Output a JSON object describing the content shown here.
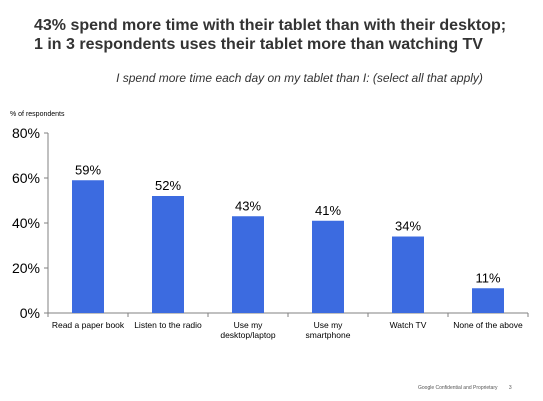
{
  "title_lines": [
    "43% spend more time with their tablet than with their desktop;",
    "1 in 3 respondents uses their tablet more than watching TV"
  ],
  "footer": {
    "text": "Google Confidential and Proprietary",
    "page": "3"
  },
  "chart_data": {
    "type": "bar",
    "title": "I spend more time each day on my tablet than I: (select all that apply)",
    "ylabel": "% of respondents",
    "xlabel": "",
    "ylim": [
      0,
      80
    ],
    "yticks": [
      0,
      20,
      40,
      60,
      80
    ],
    "ytick_labels": [
      "0%",
      "20%",
      "40%",
      "60%",
      "80%"
    ],
    "grid": false,
    "bar_color": "#3C6BE0",
    "categories": [
      [
        "Read a paper book"
      ],
      [
        "Listen to the radio"
      ],
      [
        "Use my",
        "desktop/laptop"
      ],
      [
        "Use my",
        "smartphone"
      ],
      [
        "Watch TV"
      ],
      [
        "None of the above"
      ]
    ],
    "values": [
      59,
      52,
      43,
      41,
      34,
      11
    ],
    "value_labels": [
      "59%",
      "52%",
      "43%",
      "41%",
      "34%",
      "11%"
    ]
  }
}
